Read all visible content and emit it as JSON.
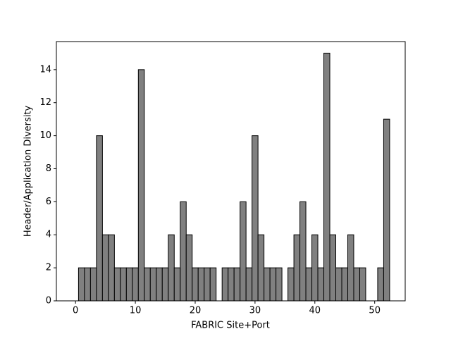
{
  "chart_data": {
    "type": "bar",
    "xlabel": "FABRIC Site+Port",
    "ylabel": "Header/Application Diversity",
    "x": [
      1,
      2,
      3,
      4,
      5,
      6,
      7,
      8,
      9,
      10,
      11,
      12,
      13,
      14,
      15,
      16,
      17,
      18,
      19,
      20,
      21,
      22,
      23,
      25,
      26,
      27,
      28,
      29,
      30,
      31,
      32,
      33,
      34,
      36,
      37,
      38,
      39,
      40,
      41,
      42,
      43,
      44,
      45,
      46,
      47,
      48,
      51,
      52
    ],
    "values": [
      2,
      2,
      2,
      10,
      4,
      4,
      2,
      2,
      2,
      2,
      14,
      2,
      2,
      2,
      2,
      4,
      2,
      6,
      4,
      2,
      2,
      2,
      2,
      2,
      2,
      2,
      6,
      2,
      10,
      4,
      2,
      2,
      2,
      2,
      4,
      6,
      2,
      4,
      2,
      15,
      4,
      2,
      2,
      4,
      2,
      2,
      2,
      11
    ],
    "color": "#808080",
    "edgecolor": "#000000",
    "xlim": [
      -3.2,
      55.1
    ],
    "ylim": [
      0,
      15.7
    ],
    "xticks": [
      0,
      10,
      20,
      30,
      40,
      50
    ],
    "yticks": [
      0,
      2,
      4,
      6,
      8,
      10,
      12,
      14
    ]
  }
}
